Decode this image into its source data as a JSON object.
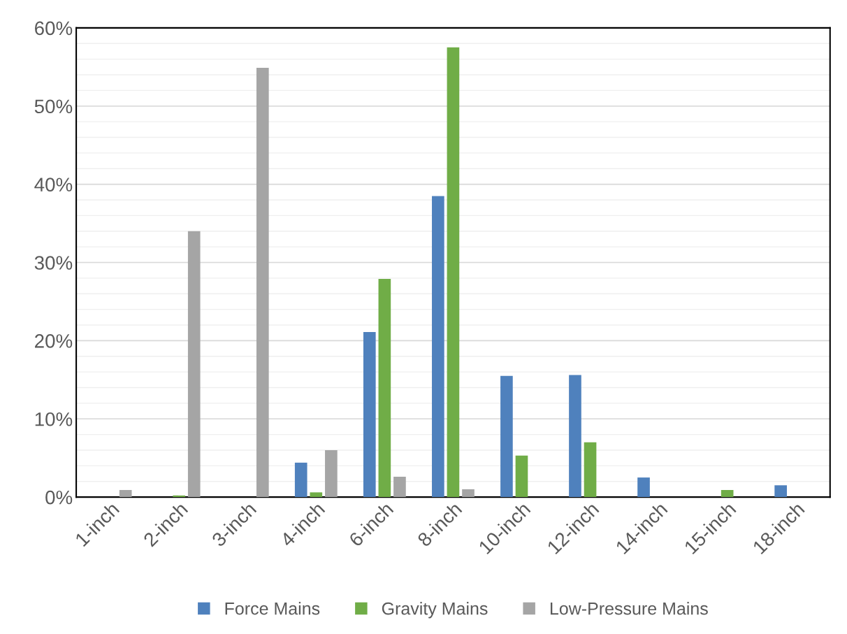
{
  "chart_data": {
    "type": "bar",
    "categories": [
      "1-inch",
      "2-inch",
      "3-inch",
      "4-inch",
      "6-inch",
      "8-inch",
      "10-inch",
      "12-inch",
      "14-inch",
      "15-inch",
      "18-inch"
    ],
    "series": [
      {
        "name": "Force Mains",
        "color": "#4f81bd",
        "values": [
          0,
          0,
          0,
          4.4,
          21.1,
          38.5,
          15.5,
          15.6,
          2.5,
          0,
          1.5
        ]
      },
      {
        "name": "Gravity Mains",
        "color": "#70ad47",
        "values": [
          0,
          0.2,
          0,
          0.6,
          27.9,
          57.5,
          5.3,
          7.0,
          0,
          0.9,
          0
        ]
      },
      {
        "name": "Low-Pressure Mains",
        "color": "#a5a5a5",
        "values": [
          0.9,
          34.0,
          54.9,
          6.0,
          2.6,
          1.0,
          0,
          0,
          0,
          0,
          0
        ]
      }
    ],
    "ylim": [
      0,
      60
    ],
    "yticks": [
      {
        "value": 0,
        "label": "0%"
      },
      {
        "value": 10,
        "label": "10%"
      },
      {
        "value": 20,
        "label": "20%"
      },
      {
        "value": 30,
        "label": "30%"
      },
      {
        "value": 40,
        "label": "40%"
      },
      {
        "value": 50,
        "label": "50%"
      },
      {
        "value": 60,
        "label": "60%"
      }
    ],
    "grid": "y",
    "legend": "bottom"
  }
}
